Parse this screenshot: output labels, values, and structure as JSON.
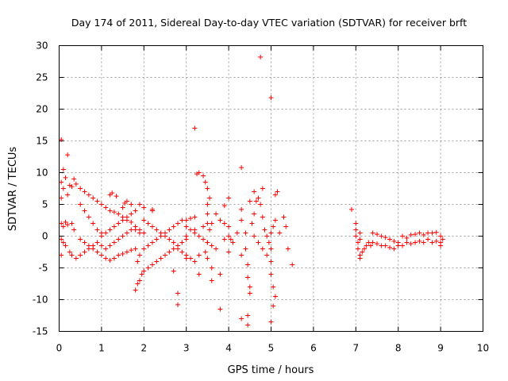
{
  "chart_data": {
    "type": "scatter",
    "title": "Day 174 of 2011, Sidereal Day-to-day VTEC variation (SDTVAR) for receiver brft",
    "xlabel": "GPS time / hours",
    "ylabel": "SDTVAR / TECUs",
    "xlim": [
      0,
      10
    ],
    "ylim": [
      -15,
      30
    ],
    "xticks": [
      "0",
      "1",
      "2",
      "3",
      "4",
      "5",
      "6",
      "7",
      "8",
      "9",
      "10"
    ],
    "yticks": [
      "-15",
      "-10",
      "-5",
      "0",
      "5",
      "10",
      "15",
      "20",
      "25",
      "30"
    ],
    "grid": true,
    "marker": "+",
    "color": "#ff0000",
    "series": [
      {
        "name": "SDTVAR",
        "points": [
          [
            0.05,
            15.2
          ],
          [
            0.2,
            12.8
          ],
          [
            0.1,
            10.5
          ],
          [
            0.05,
            8.5
          ],
          [
            0.1,
            7.5
          ],
          [
            0.15,
            9.2
          ],
          [
            0.25,
            8.0
          ],
          [
            0.3,
            7.8
          ],
          [
            0.35,
            9.0
          ],
          [
            0.4,
            8.2
          ],
          [
            0.2,
            6.5
          ],
          [
            0.05,
            6.0
          ],
          [
            0.05,
            2.0
          ],
          [
            0.1,
            1.5
          ],
          [
            0.15,
            2.2
          ],
          [
            0.2,
            1.8
          ],
          [
            0.3,
            2.0
          ],
          [
            0.35,
            1.0
          ],
          [
            0.05,
            -0.5
          ],
          [
            0.1,
            -1.0
          ],
          [
            0.15,
            -1.5
          ],
          [
            0.25,
            -2.5
          ],
          [
            0.3,
            -3.0
          ],
          [
            0.4,
            -3.5
          ],
          [
            0.05,
            -3.0
          ],
          [
            0.5,
            7.5
          ],
          [
            0.6,
            7.0
          ],
          [
            0.7,
            6.5
          ],
          [
            0.8,
            6.0
          ],
          [
            0.9,
            5.5
          ],
          [
            1.0,
            5.0
          ],
          [
            1.1,
            4.5
          ],
          [
            1.2,
            4.0
          ],
          [
            1.3,
            3.8
          ],
          [
            1.4,
            3.5
          ],
          [
            1.5,
            3.0
          ],
          [
            1.6,
            2.5
          ],
          [
            1.7,
            2.2
          ],
          [
            1.8,
            1.5
          ],
          [
            1.9,
            1.0
          ],
          [
            2.0,
            0.5
          ],
          [
            0.5,
            5.0
          ],
          [
            0.6,
            4.0
          ],
          [
            0.7,
            3.0
          ],
          [
            0.8,
            2.0
          ],
          [
            0.9,
            1.0
          ],
          [
            1.0,
            0.5
          ],
          [
            1.0,
            0.0
          ],
          [
            1.1,
            0.5
          ],
          [
            1.2,
            1.0
          ],
          [
            1.3,
            1.5
          ],
          [
            1.4,
            2.0
          ],
          [
            1.5,
            2.5
          ],
          [
            1.6,
            3.0
          ],
          [
            1.7,
            3.5
          ],
          [
            1.8,
            4.0
          ],
          [
            1.2,
            6.5
          ],
          [
            1.25,
            6.8
          ],
          [
            1.35,
            6.3
          ],
          [
            1.6,
            5.5
          ],
          [
            1.9,
            5.0
          ],
          [
            2.0,
            4.5
          ],
          [
            2.2,
            4.0
          ],
          [
            1.5,
            4.5
          ],
          [
            1.55,
            5.2
          ],
          [
            1.7,
            5.0
          ],
          [
            0.5,
            -0.5
          ],
          [
            0.6,
            -1.0
          ],
          [
            0.7,
            -1.5
          ],
          [
            0.8,
            -2.0
          ],
          [
            0.9,
            -2.5
          ],
          [
            1.0,
            -3.0
          ],
          [
            1.1,
            -3.5
          ],
          [
            1.2,
            -3.8
          ],
          [
            0.5,
            -3.0
          ],
          [
            0.6,
            -2.5
          ],
          [
            0.7,
            -2.0
          ],
          [
            0.8,
            -1.5
          ],
          [
            0.9,
            -1.0
          ],
          [
            1.0,
            -1.5
          ],
          [
            1.1,
            -2.0
          ],
          [
            1.2,
            -1.5
          ],
          [
            1.3,
            -1.0
          ],
          [
            1.4,
            -0.5
          ],
          [
            1.5,
            0.0
          ],
          [
            1.6,
            0.5
          ],
          [
            1.7,
            1.0
          ],
          [
            1.8,
            1.0
          ],
          [
            1.9,
            0.5
          ],
          [
            1.3,
            -3.5
          ],
          [
            1.4,
            -3.0
          ],
          [
            1.5,
            -2.8
          ],
          [
            1.6,
            -2.5
          ],
          [
            1.7,
            -2.2
          ],
          [
            1.8,
            -2.0
          ],
          [
            1.8,
            -8.5
          ],
          [
            1.85,
            -7.5
          ],
          [
            1.9,
            -7.0
          ],
          [
            1.95,
            -6.0
          ],
          [
            2.0,
            -5.5
          ],
          [
            2.1,
            -5.0
          ],
          [
            2.2,
            -4.5
          ],
          [
            2.3,
            -4.0
          ],
          [
            2.4,
            -3.5
          ],
          [
            2.5,
            -3.0
          ],
          [
            2.6,
            -2.5
          ],
          [
            2.7,
            -2.0
          ],
          [
            2.8,
            -1.5
          ],
          [
            2.9,
            -1.0
          ],
          [
            3.0,
            -0.5
          ],
          [
            1.85,
            -4.0
          ],
          [
            1.9,
            -3.0
          ],
          [
            2.0,
            -2.0
          ],
          [
            2.1,
            -1.5
          ],
          [
            2.2,
            -1.0
          ],
          [
            2.3,
            -0.5
          ],
          [
            2.4,
            0.0
          ],
          [
            2.5,
            0.5
          ],
          [
            2.6,
            1.0
          ],
          [
            2.7,
            1.5
          ],
          [
            2.8,
            2.0
          ],
          [
            2.9,
            2.5
          ],
          [
            3.0,
            2.5
          ],
          [
            3.1,
            2.8
          ],
          [
            3.2,
            3.0
          ],
          [
            2.0,
            2.5
          ],
          [
            2.1,
            2.0
          ],
          [
            2.2,
            1.5
          ],
          [
            2.3,
            1.0
          ],
          [
            2.4,
            0.5
          ],
          [
            2.5,
            0.0
          ],
          [
            2.6,
            -0.5
          ],
          [
            2.7,
            -1.0
          ],
          [
            2.8,
            -2.0
          ],
          [
            2.9,
            -2.5
          ],
          [
            3.0,
            -3.0
          ],
          [
            3.1,
            -3.5
          ],
          [
            3.2,
            -4.0
          ],
          [
            2.2,
            4.2
          ],
          [
            2.7,
            -5.5
          ],
          [
            2.8,
            -9.0
          ],
          [
            2.8,
            -10.8
          ],
          [
            3.0,
            -3.5
          ],
          [
            3.3,
            -3.0
          ],
          [
            3.3,
            -6.0
          ],
          [
            3.0,
            1.5
          ],
          [
            3.1,
            1.0
          ],
          [
            3.2,
            0.5
          ],
          [
            3.3,
            0.0
          ],
          [
            3.4,
            -0.5
          ],
          [
            3.5,
            -1.0
          ],
          [
            3.6,
            -1.5
          ],
          [
            3.7,
            -2.0
          ],
          [
            3.0,
            0.0
          ],
          [
            3.2,
            1.0
          ],
          [
            3.4,
            1.5
          ],
          [
            3.6,
            2.0
          ],
          [
            3.8,
            2.5
          ],
          [
            3.9,
            2.0
          ],
          [
            4.0,
            1.5
          ],
          [
            3.2,
            17.0
          ],
          [
            3.3,
            10.0
          ],
          [
            3.25,
            9.8
          ],
          [
            3.4,
            9.5
          ],
          [
            3.45,
            8.5
          ],
          [
            3.5,
            7.5
          ],
          [
            3.55,
            6.0
          ],
          [
            3.5,
            5.0
          ],
          [
            3.5,
            3.5
          ],
          [
            3.5,
            2.0
          ],
          [
            3.55,
            1.0
          ],
          [
            3.5,
            -1.0
          ],
          [
            3.45,
            -2.5
          ],
          [
            3.5,
            -3.5
          ],
          [
            3.6,
            -5.0
          ],
          [
            3.6,
            -7.0
          ],
          [
            3.7,
            3.5
          ],
          [
            3.8,
            -6.0
          ],
          [
            3.8,
            -11.5
          ],
          [
            3.9,
            4.8
          ],
          [
            4.0,
            6.0
          ],
          [
            3.9,
            -0.5
          ],
          [
            4.0,
            0.0
          ],
          [
            4.05,
            -0.5
          ],
          [
            4.1,
            -1.0
          ],
          [
            4.2,
            0.5
          ],
          [
            4.0,
            -2.5
          ],
          [
            4.3,
            10.8
          ],
          [
            4.3,
            4.2
          ],
          [
            4.3,
            2.5
          ],
          [
            4.4,
            0.5
          ],
          [
            4.5,
            5.5
          ],
          [
            4.4,
            -2.0
          ],
          [
            4.3,
            -3.0
          ],
          [
            4.3,
            -13.0
          ],
          [
            4.45,
            -12.5
          ],
          [
            4.45,
            -14.0
          ],
          [
            4.5,
            -9.0
          ],
          [
            4.45,
            -4.5
          ],
          [
            4.45,
            -6.5
          ],
          [
            4.5,
            -8.0
          ],
          [
            4.55,
            2.0
          ],
          [
            4.6,
            3.5
          ],
          [
            4.65,
            5.5
          ],
          [
            4.7,
            6.0
          ],
          [
            4.8,
            7.5
          ],
          [
            4.75,
            5.0
          ],
          [
            4.8,
            3.0
          ],
          [
            4.85,
            1.0
          ],
          [
            4.9,
            0.0
          ],
          [
            4.95,
            -1.0
          ],
          [
            5.0,
            -2.0
          ],
          [
            5.0,
            -4.0
          ],
          [
            4.6,
            0.0
          ],
          [
            4.7,
            -1.0
          ],
          [
            4.8,
            -2.0
          ],
          [
            4.9,
            -3.0
          ],
          [
            5.0,
            0.5
          ],
          [
            5.05,
            1.5
          ],
          [
            5.1,
            2.5
          ],
          [
            4.75,
            28.2
          ],
          [
            5.0,
            21.8
          ],
          [
            4.6,
            7.0
          ],
          [
            5.1,
            6.5
          ],
          [
            5.15,
            7.0
          ],
          [
            5.0,
            -6.0
          ],
          [
            5.05,
            -8.0
          ],
          [
            5.1,
            -9.5
          ],
          [
            5.05,
            -11.0
          ],
          [
            5.0,
            -13.5
          ],
          [
            5.2,
            0.5
          ],
          [
            5.3,
            3.0
          ],
          [
            5.35,
            1.5
          ],
          [
            5.4,
            -2.0
          ],
          [
            5.5,
            -4.5
          ],
          [
            6.9,
            4.2
          ],
          [
            7.0,
            2.0
          ],
          [
            7.0,
            1.0
          ],
          [
            7.0,
            0.0
          ],
          [
            7.05,
            -1.0
          ],
          [
            7.05,
            -2.0
          ],
          [
            7.1,
            -3.0
          ],
          [
            7.1,
            -3.5
          ],
          [
            7.15,
            -2.5
          ],
          [
            7.2,
            -2.0
          ],
          [
            7.25,
            -1.5
          ],
          [
            7.3,
            -1.0
          ],
          [
            7.35,
            -1.5
          ],
          [
            7.1,
            -0.5
          ],
          [
            7.1,
            0.5
          ],
          [
            7.4,
            0.5
          ],
          [
            7.5,
            0.3
          ],
          [
            7.6,
            0.0
          ],
          [
            7.7,
            -0.2
          ],
          [
            7.8,
            -0.5
          ],
          [
            7.9,
            -0.8
          ],
          [
            8.0,
            -1.0
          ],
          [
            7.4,
            -1.0
          ],
          [
            7.5,
            -1.2
          ],
          [
            7.6,
            -1.5
          ],
          [
            7.7,
            -1.5
          ],
          [
            7.8,
            -1.8
          ],
          [
            7.9,
            -2.0
          ],
          [
            8.0,
            -1.5
          ],
          [
            8.1,
            -1.5
          ],
          [
            8.2,
            -1.0
          ],
          [
            8.3,
            -1.2
          ],
          [
            8.4,
            -1.0
          ],
          [
            8.5,
            -0.8
          ],
          [
            8.6,
            -1.0
          ],
          [
            8.7,
            -0.5
          ],
          [
            8.1,
            0.0
          ],
          [
            8.2,
            -0.3
          ],
          [
            8.3,
            0.2
          ],
          [
            8.4,
            0.3
          ],
          [
            8.5,
            0.5
          ],
          [
            8.6,
            0.2
          ],
          [
            8.7,
            0.5
          ],
          [
            8.8,
            0.5
          ],
          [
            8.8,
            -1.0
          ],
          [
            8.9,
            -0.8
          ],
          [
            9.0,
            -1.0
          ],
          [
            9.0,
            0.0
          ],
          [
            8.9,
            0.6
          ],
          [
            9.05,
            -0.5
          ],
          [
            9.0,
            -1.5
          ]
        ]
      }
    ]
  }
}
